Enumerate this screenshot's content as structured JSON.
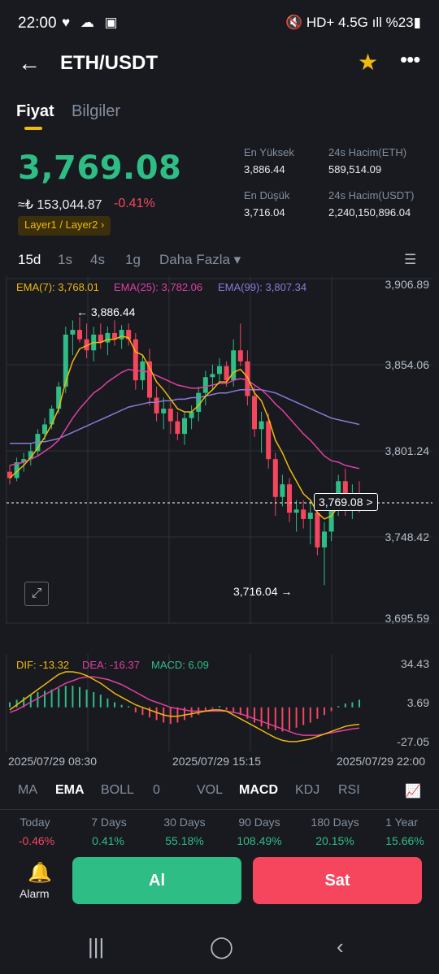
{
  "status": {
    "time": "22:00",
    "left_icons": "♥ ☁ ▣",
    "right_icons": "🔇 HD+ 4.5G ıll %23▮"
  },
  "header": {
    "title": "ETH/USDT"
  },
  "tabs": [
    "Fiyat",
    "Bilgiler"
  ],
  "ticker": {
    "price": "3,769.08",
    "converted": "≈₺ 153,044.87",
    "change": "-0.41%",
    "tag": "Layer1 / Layer2 ›",
    "high_label": "En Yüksek",
    "high": "3,886.44",
    "low_label": "En Düşük",
    "low": "3,716.04",
    "vol_eth_label": "24s Hacim(ETH)",
    "vol_eth": "589,514.09",
    "vol_usdt_label": "24s Hacim(USDT)",
    "vol_usdt": "2,240,150,896.04"
  },
  "timeframes": [
    "15d",
    "1s",
    "4s",
    "1g",
    "Daha Fazla ▾"
  ],
  "chart": {
    "ema7": "EMA(7): 3,768.01",
    "ema25": "EMA(25): 3,782.06",
    "ema99": "EMA(99): 3,807.34",
    "y_labels": [
      "3,906.89",
      "3,854.06",
      "3,801.24",
      "3,748.42",
      "3,695.59"
    ],
    "high_marker": "← 3,886.44",
    "low_marker": "3,716.04 →",
    "last_price": "3,769.08 >"
  },
  "macd": {
    "dif": "DIF: -13.32",
    "dea": "DEA: -16.37",
    "macd": "MACD: 6.09",
    "y_labels": [
      "34.43",
      "3.69",
      "-27.05"
    ]
  },
  "dates": [
    "2025/07/29 08:30",
    "2025/07/29 15:15",
    "2025/07/29 22:00"
  ],
  "indicators": {
    "main": [
      "MA",
      "EMA",
      "BOLL",
      "0"
    ],
    "sub": [
      "VOL",
      "MACD",
      "KDJ",
      "RSI"
    ]
  },
  "performance": [
    {
      "label": "Today",
      "value": "-0.46%"
    },
    {
      "label": "7 Days",
      "value": "0.41%"
    },
    {
      "label": "30 Days",
      "value": "55.18%"
    },
    {
      "label": "90 Days",
      "value": "108.49%"
    },
    {
      "label": "180 Days",
      "value": "20.15%"
    },
    {
      "label": "1 Year",
      "value": "15.66%"
    }
  ],
  "actions": {
    "alarm": "Alarm",
    "buy": "Al",
    "sell": "Sat"
  },
  "colors": {
    "up": "#2ebd85",
    "down": "#f6465d",
    "accent": "#f0b90b",
    "ema7": "#f0b90b",
    "ema25": "#e040a0",
    "ema99": "#8a7bd8"
  },
  "chart_data": {
    "type": "candlestick",
    "ylim": [
      3695.59,
      3906.89
    ],
    "candles": [
      [
        3788,
        3792,
        3780,
        3784
      ],
      [
        3784,
        3797,
        3782,
        3794
      ],
      [
        3794,
        3800,
        3788,
        3796
      ],
      [
        3796,
        3806,
        3792,
        3801
      ],
      [
        3801,
        3815,
        3798,
        3812
      ],
      [
        3812,
        3822,
        3808,
        3818
      ],
      [
        3818,
        3830,
        3815,
        3828
      ],
      [
        3828,
        3845,
        3825,
        3842
      ],
      [
        3842,
        3880,
        3838,
        3875
      ],
      [
        3875,
        3884,
        3862,
        3878
      ],
      [
        3878,
        3886,
        3870,
        3872
      ],
      [
        3872,
        3882,
        3860,
        3865
      ],
      [
        3865,
        3880,
        3858,
        3875
      ],
      [
        3875,
        3882,
        3866,
        3870
      ],
      [
        3870,
        3880,
        3862,
        3876
      ],
      [
        3876,
        3884,
        3868,
        3872
      ],
      [
        3872,
        3881,
        3866,
        3878
      ],
      [
        3878,
        3882,
        3868,
        3872
      ],
      [
        3872,
        3876,
        3840,
        3846
      ],
      [
        3846,
        3862,
        3840,
        3858
      ],
      [
        3858,
        3866,
        3830,
        3835
      ],
      [
        3835,
        3842,
        3820,
        3825
      ],
      [
        3825,
        3835,
        3815,
        3828
      ],
      [
        3828,
        3832,
        3812,
        3820
      ],
      [
        3820,
        3826,
        3808,
        3812
      ],
      [
        3812,
        3826,
        3805,
        3822
      ],
      [
        3822,
        3830,
        3815,
        3826
      ],
      [
        3826,
        3842,
        3820,
        3838
      ],
      [
        3838,
        3852,
        3830,
        3848
      ],
      [
        3848,
        3856,
        3840,
        3850
      ],
      [
        3850,
        3860,
        3844,
        3855
      ],
      [
        3855,
        3858,
        3842,
        3846
      ],
      [
        3846,
        3872,
        3842,
        3865
      ],
      [
        3865,
        3882,
        3855,
        3858
      ],
      [
        3858,
        3865,
        3830,
        3836
      ],
      [
        3836,
        3842,
        3810,
        3815
      ],
      [
        3815,
        3826,
        3800,
        3820
      ],
      [
        3820,
        3825,
        3790,
        3796
      ],
      [
        3796,
        3800,
        3760,
        3772
      ],
      [
        3772,
        3786,
        3766,
        3780
      ],
      [
        3780,
        3784,
        3756,
        3762
      ],
      [
        3762,
        3770,
        3750,
        3764
      ],
      [
        3764,
        3770,
        3752,
        3758
      ],
      [
        3758,
        3770,
        3742,
        3762
      ],
      [
        3762,
        3766,
        3735,
        3740
      ],
      [
        3740,
        3756,
        3716,
        3750
      ],
      [
        3750,
        3770,
        3744,
        3766
      ],
      [
        3766,
        3786,
        3760,
        3782
      ],
      [
        3782,
        3790,
        3760,
        3766
      ],
      [
        3766,
        3780,
        3758,
        3774
      ],
      [
        3774,
        3782,
        3762,
        3768
      ]
    ],
    "ema7": [
      3784,
      3788,
      3792,
      3797,
      3803,
      3810,
      3818,
      3828,
      3845,
      3858,
      3866,
      3868,
      3870,
      3870,
      3872,
      3872,
      3874,
      3873,
      3864,
      3862,
      3854,
      3845,
      3840,
      3834,
      3828,
      3826,
      3826,
      3830,
      3836,
      3840,
      3845,
      3845,
      3851,
      3853,
      3848,
      3838,
      3833,
      3822,
      3808,
      3800,
      3790,
      3782,
      3774,
      3770,
      3762,
      3758,
      3760,
      3766,
      3766,
      3768,
      3768
    ],
    "ema25": [
      3792,
      3793,
      3794,
      3796,
      3798,
      3801,
      3804,
      3808,
      3815,
      3822,
      3828,
      3833,
      3838,
      3841,
      3845,
      3848,
      3851,
      3853,
      3852,
      3852,
      3851,
      3849,
      3847,
      3845,
      3843,
      3842,
      3841,
      3841,
      3842,
      3843,
      3844,
      3844,
      3846,
      3847,
      3846,
      3843,
      3840,
      3836,
      3831,
      3827,
      3822,
      3817,
      3812,
      3808,
      3803,
      3798,
      3795,
      3794,
      3792,
      3791,
      3790
    ],
    "ema99": [
      3806,
      3806,
      3806,
      3806,
      3807,
      3807,
      3808,
      3809,
      3811,
      3813,
      3815,
      3817,
      3819,
      3821,
      3823,
      3825,
      3827,
      3829,
      3830,
      3831,
      3832,
      3832,
      3833,
      3833,
      3834,
      3834,
      3835,
      3835,
      3836,
      3837,
      3838,
      3838,
      3839,
      3840,
      3840,
      3840,
      3840,
      3839,
      3838,
      3836,
      3834,
      3832,
      3830,
      3828,
      3826,
      3824,
      3822,
      3821,
      3820,
      3819,
      3818
    ],
    "macd_hist": [
      4,
      6,
      8,
      10,
      12,
      13,
      14,
      15,
      17,
      17,
      16,
      14,
      12,
      10,
      7,
      4,
      2,
      1,
      -4,
      -6,
      -8,
      -10,
      -12,
      -13,
      -12,
      -10,
      -8,
      -6,
      -3,
      -1,
      1,
      -2,
      -4,
      -6,
      -9,
      -12,
      -15,
      -17,
      -18,
      -19,
      -18,
      -16,
      -14,
      -12,
      -9,
      -6,
      -3,
      1,
      3,
      4,
      6
    ],
    "macd_dif": [
      -2,
      2,
      6,
      10,
      14,
      18,
      22,
      26,
      28,
      28,
      27,
      25,
      22,
      19,
      15,
      11,
      8,
      5,
      2,
      0,
      -2,
      -4,
      -6,
      -7,
      -7,
      -6,
      -5,
      -4,
      -3,
      -2,
      -2,
      -3,
      -6,
      -9,
      -12,
      -15,
      -18,
      -21,
      -24,
      -26,
      -27,
      -27,
      -26,
      -25,
      -23,
      -21,
      -19,
      -17,
      -15,
      -14,
      -13.32
    ],
    "macd_dea": [
      -4,
      -2,
      1,
      4,
      7,
      10,
      13,
      16,
      19,
      21,
      23,
      24,
      24,
      23,
      22,
      20,
      18,
      15,
      12,
      9,
      6,
      4,
      2,
      0,
      -1,
      -2,
      -3,
      -3,
      -3,
      -3,
      -3,
      -3,
      -4,
      -5,
      -7,
      -9,
      -11,
      -13,
      -15,
      -17,
      -19,
      -21,
      -22,
      -22,
      -22,
      -21,
      -20,
      -19,
      -18,
      -17,
      -16.37
    ],
    "macd_ylim": [
      -27.05,
      34.43
    ]
  }
}
